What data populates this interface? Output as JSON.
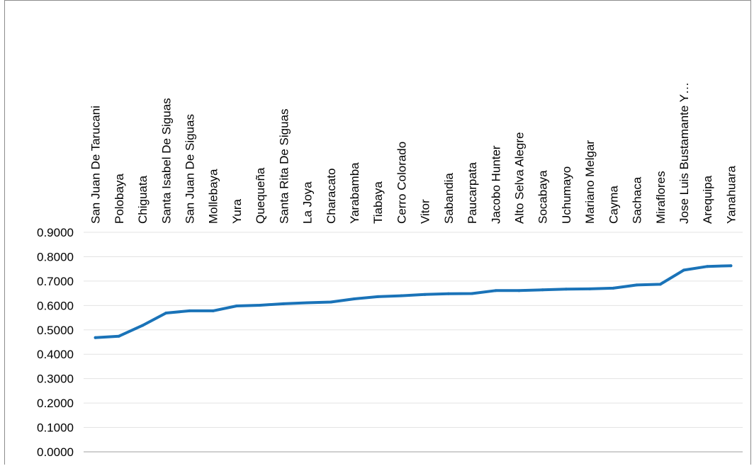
{
  "chart_data": {
    "type": "line",
    "title": "",
    "xlabel": "",
    "ylabel": "",
    "ylim": [
      0,
      0.9
    ],
    "yticks": [
      "0.0000",
      "0.1000",
      "0.2000",
      "0.3000",
      "0.4000",
      "0.5000",
      "0.6000",
      "0.7000",
      "0.8000",
      "0.9000"
    ],
    "categories": [
      "San Juan De Tarucani",
      "Polobaya",
      "Chiguata",
      "Santa Isabel De Siguas",
      "San Juan De Siguas",
      "Mollebaya",
      "Yura",
      "Quequeña",
      "Santa Rita De Siguas",
      "La Joya",
      "Characato",
      "Yarabamba",
      "Tiabaya",
      "Cerro Colorado",
      "Vitor",
      "Sabandia",
      "Paucarpata",
      "Jacobo Hunter",
      "Alto Selva Alegre",
      "Socabaya",
      "Uchumayo",
      "Mariano Melgar",
      "Cayma",
      "Sachaca",
      "Miraflores",
      "Jose Luis Bustamante Y…",
      "Arequipa",
      "Yanahuara"
    ],
    "series": [
      {
        "values": [
          0.468,
          0.474,
          0.518,
          0.569,
          0.578,
          0.578,
          0.598,
          0.601,
          0.607,
          0.611,
          0.614,
          0.627,
          0.636,
          0.64,
          0.645,
          0.648,
          0.649,
          0.661,
          0.661,
          0.664,
          0.667,
          0.668,
          0.671,
          0.684,
          0.687,
          0.745,
          0.76,
          0.763
        ],
        "color": "#1a73b8"
      }
    ],
    "grid": true,
    "gridColor": "#e3e3e3",
    "axisColor": "#bfbfbf"
  }
}
